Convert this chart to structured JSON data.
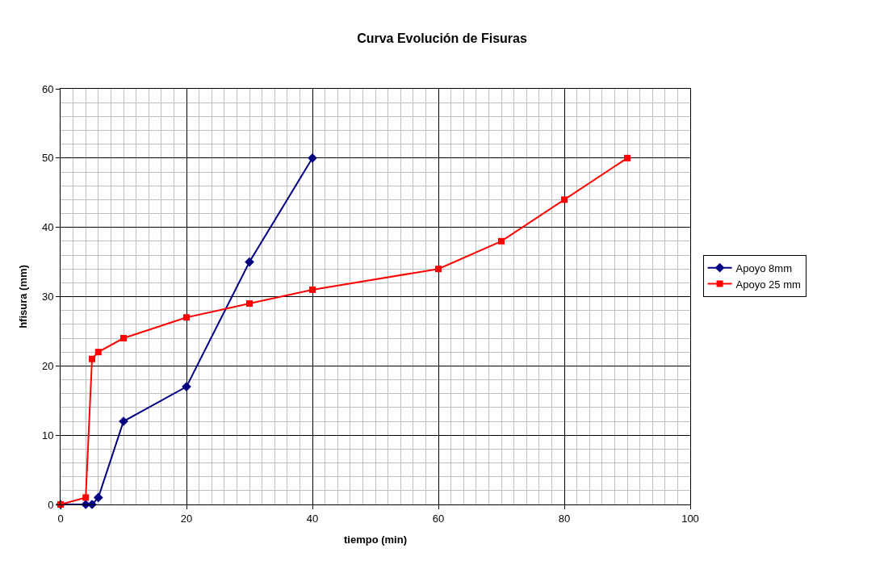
{
  "chart_data": {
    "type": "line",
    "title": "Curva Evolución de Fisuras",
    "xlabel": "tiempo (min)",
    "ylabel": "hfisura (mm)",
    "xlim": [
      0,
      100
    ],
    "xticks": [
      0,
      20,
      40,
      60,
      80,
      100
    ],
    "ylim": [
      0,
      60
    ],
    "yticks": [
      0,
      10,
      20,
      30,
      40,
      50,
      60
    ],
    "grid": true,
    "legend": "right",
    "series": [
      {
        "name": "Apoyo 8mm",
        "color": "#000080",
        "marker": "diamond",
        "x": [
          0,
          4,
          5,
          6,
          10,
          20,
          30,
          40
        ],
        "values": [
          0,
          0,
          0,
          1,
          12,
          17,
          35,
          50
        ]
      },
      {
        "name": "Apoyo 25 mm",
        "color": "#ff0000",
        "marker": "square",
        "x": [
          0,
          4,
          5,
          6,
          10,
          20,
          30,
          40,
          60,
          70,
          80,
          90
        ],
        "values": [
          0,
          1,
          21,
          22,
          24,
          27,
          29,
          31,
          34,
          38,
          44,
          50
        ]
      }
    ]
  }
}
